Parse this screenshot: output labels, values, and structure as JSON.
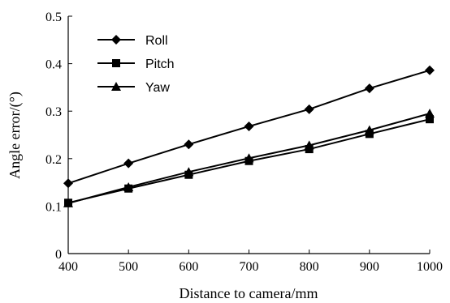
{
  "chart_data": {
    "type": "line",
    "xlabel": "Distance to camera/mm",
    "ylabel": "Angle error/(°)",
    "xlim": [
      400,
      1000
    ],
    "ylim": [
      0,
      0.5
    ],
    "x": [
      400,
      500,
      600,
      700,
      800,
      900,
      1000
    ],
    "x_ticks": [
      "400",
      "500",
      "600",
      "700",
      "800",
      "900",
      "1000"
    ],
    "y_ticks": [
      "0",
      "0.1",
      "0.2",
      "0.3",
      "0.4",
      "0.5"
    ],
    "grid": false,
    "legend_position": "top-left",
    "series": [
      {
        "name": "Roll",
        "marker": "diamond",
        "color": "#000000",
        "values": [
          0.148,
          0.19,
          0.23,
          0.268,
          0.304,
          0.348,
          0.386
        ]
      },
      {
        "name": "Pitch",
        "marker": "square",
        "color": "#000000",
        "values": [
          0.107,
          0.137,
          0.166,
          0.195,
          0.22,
          0.252,
          0.283
        ]
      },
      {
        "name": "Yaw",
        "marker": "triangle",
        "color": "#000000",
        "values": [
          0.106,
          0.14,
          0.172,
          0.201,
          0.228,
          0.26,
          0.295
        ]
      }
    ]
  }
}
